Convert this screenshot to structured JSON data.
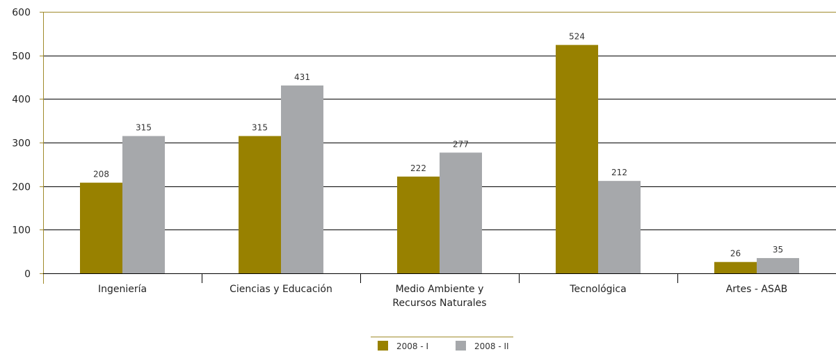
{
  "chart_data": {
    "type": "bar",
    "categories": [
      [
        "Ingeniería"
      ],
      [
        "Ciencias y Educación"
      ],
      [
        "Medio Ambiente y",
        "Recursos Naturales"
      ],
      [
        "Tecnológica"
      ],
      [
        "Artes - ASAB"
      ]
    ],
    "series": [
      {
        "name": "2008 - I",
        "values": [
          208,
          315,
          222,
          524,
          26
        ],
        "color": "#988100"
      },
      {
        "name": "2008 - II",
        "values": [
          315,
          431,
          277,
          212,
          35
        ],
        "color": "#a6a8ab"
      }
    ],
    "ylim": [
      0,
      600
    ],
    "yticks": [
      0,
      100,
      200,
      300,
      400,
      500,
      600
    ],
    "grid": true,
    "gridColor": "#000000",
    "axisColor": "#a08a2a",
    "legend_position": "bottom-center"
  }
}
